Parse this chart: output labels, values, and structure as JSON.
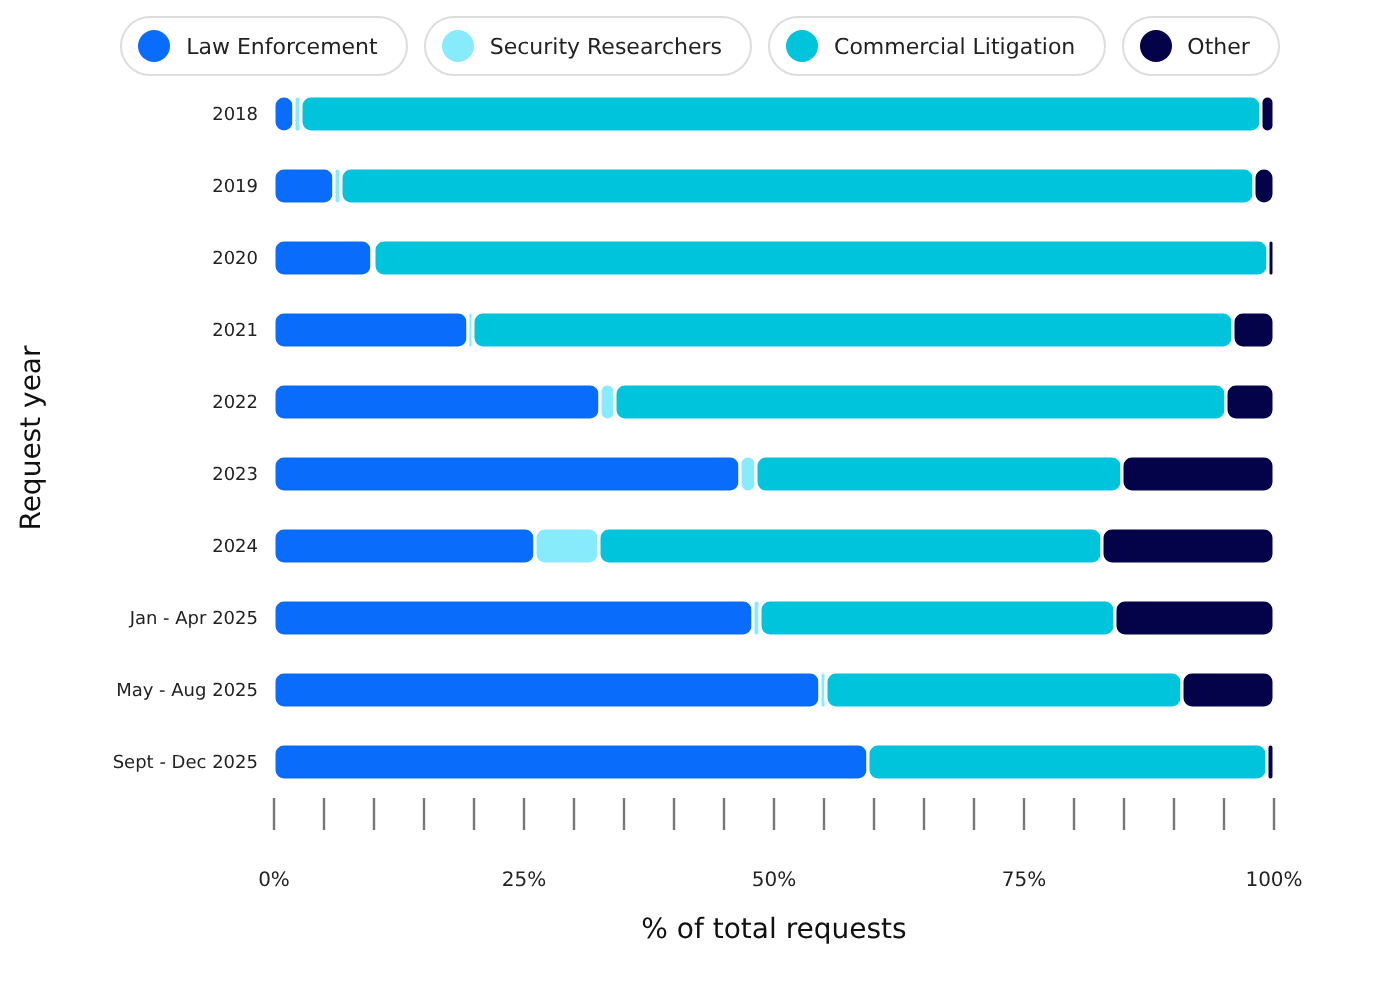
{
  "chart_data": {
    "type": "bar",
    "orientation": "horizontal",
    "stacked": true,
    "ylabel": "Request year",
    "xlabel": "% of total requests",
    "categories": [
      "2018",
      "2019",
      "2020",
      "2021",
      "2022",
      "2023",
      "2024",
      "Jan - Apr 2025",
      "May - Aug 2025",
      "Sept - Dec 2025"
    ],
    "series": [
      {
        "name": "Law Enforcement",
        "color": "#0a6cfa",
        "values": [
          2,
          6,
          9.8,
          19.4,
          32.6,
          46.6,
          26.1,
          47.9,
          54.6,
          59.4
        ]
      },
      {
        "name": "Security Researchers",
        "color": "#87ebfc",
        "values": [
          0.7,
          0.7,
          0.2,
          0.5,
          1.5,
          1.6,
          6.4,
          0.7,
          0.6,
          0
        ]
      },
      {
        "name": "Commercial Litigation",
        "color": "#00c3dc",
        "values": [
          96,
          91.3,
          89.4,
          76,
          61.1,
          36.6,
          50.3,
          35.5,
          35.6,
          39.9
        ]
      },
      {
        "name": "Other",
        "color": "#04034a",
        "values": [
          1.3,
          2,
          0.6,
          4.1,
          4.8,
          15.2,
          17.2,
          15.9,
          9.2,
          0.7
        ]
      }
    ],
    "xlim": [
      0,
      100
    ],
    "xticks": [
      {
        "value": 0,
        "label": "0%"
      },
      {
        "value": 5,
        "label": null
      },
      {
        "value": 10,
        "label": null
      },
      {
        "value": 15,
        "label": null
      },
      {
        "value": 20,
        "label": null
      },
      {
        "value": 25,
        "label": "25%"
      },
      {
        "value": 30,
        "label": null
      },
      {
        "value": 35,
        "label": null
      },
      {
        "value": 40,
        "label": null
      },
      {
        "value": 45,
        "label": null
      },
      {
        "value": 50,
        "label": "50%"
      },
      {
        "value": 55,
        "label": null
      },
      {
        "value": 60,
        "label": null
      },
      {
        "value": 65,
        "label": null
      },
      {
        "value": 70,
        "label": null
      },
      {
        "value": 75,
        "label": "75%"
      },
      {
        "value": 80,
        "label": null
      },
      {
        "value": 85,
        "label": null
      },
      {
        "value": 90,
        "label": null
      },
      {
        "value": 95,
        "label": null
      },
      {
        "value": 100,
        "label": "100%"
      }
    ],
    "legend": "top"
  }
}
